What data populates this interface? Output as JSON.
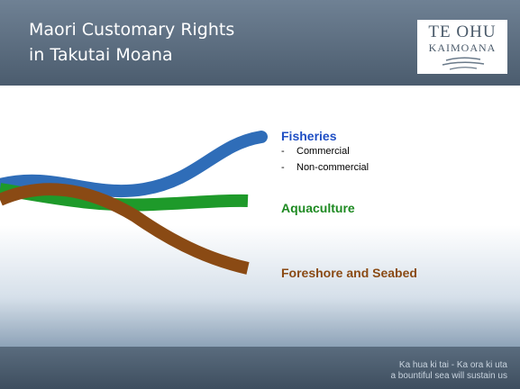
{
  "header": {
    "title_lines": [
      "Maori Customary Rights",
      "in Takutai Moana"
    ]
  },
  "logo": {
    "line1": "TE OHU",
    "line2": "KAIMOANA"
  },
  "items": [
    {
      "label": "Fisheries",
      "bullet": "-",
      "sublist": [
        "Commercial",
        "Non-commercial"
      ]
    },
    {
      "label": "Aquaculture"
    },
    {
      "label": "Foreshore and Seabed"
    }
  ],
  "footer": {
    "lines": [
      "Ka hua ki tai - Ka ora ki uta",
      "a bountiful sea will sustain us"
    ]
  }
}
